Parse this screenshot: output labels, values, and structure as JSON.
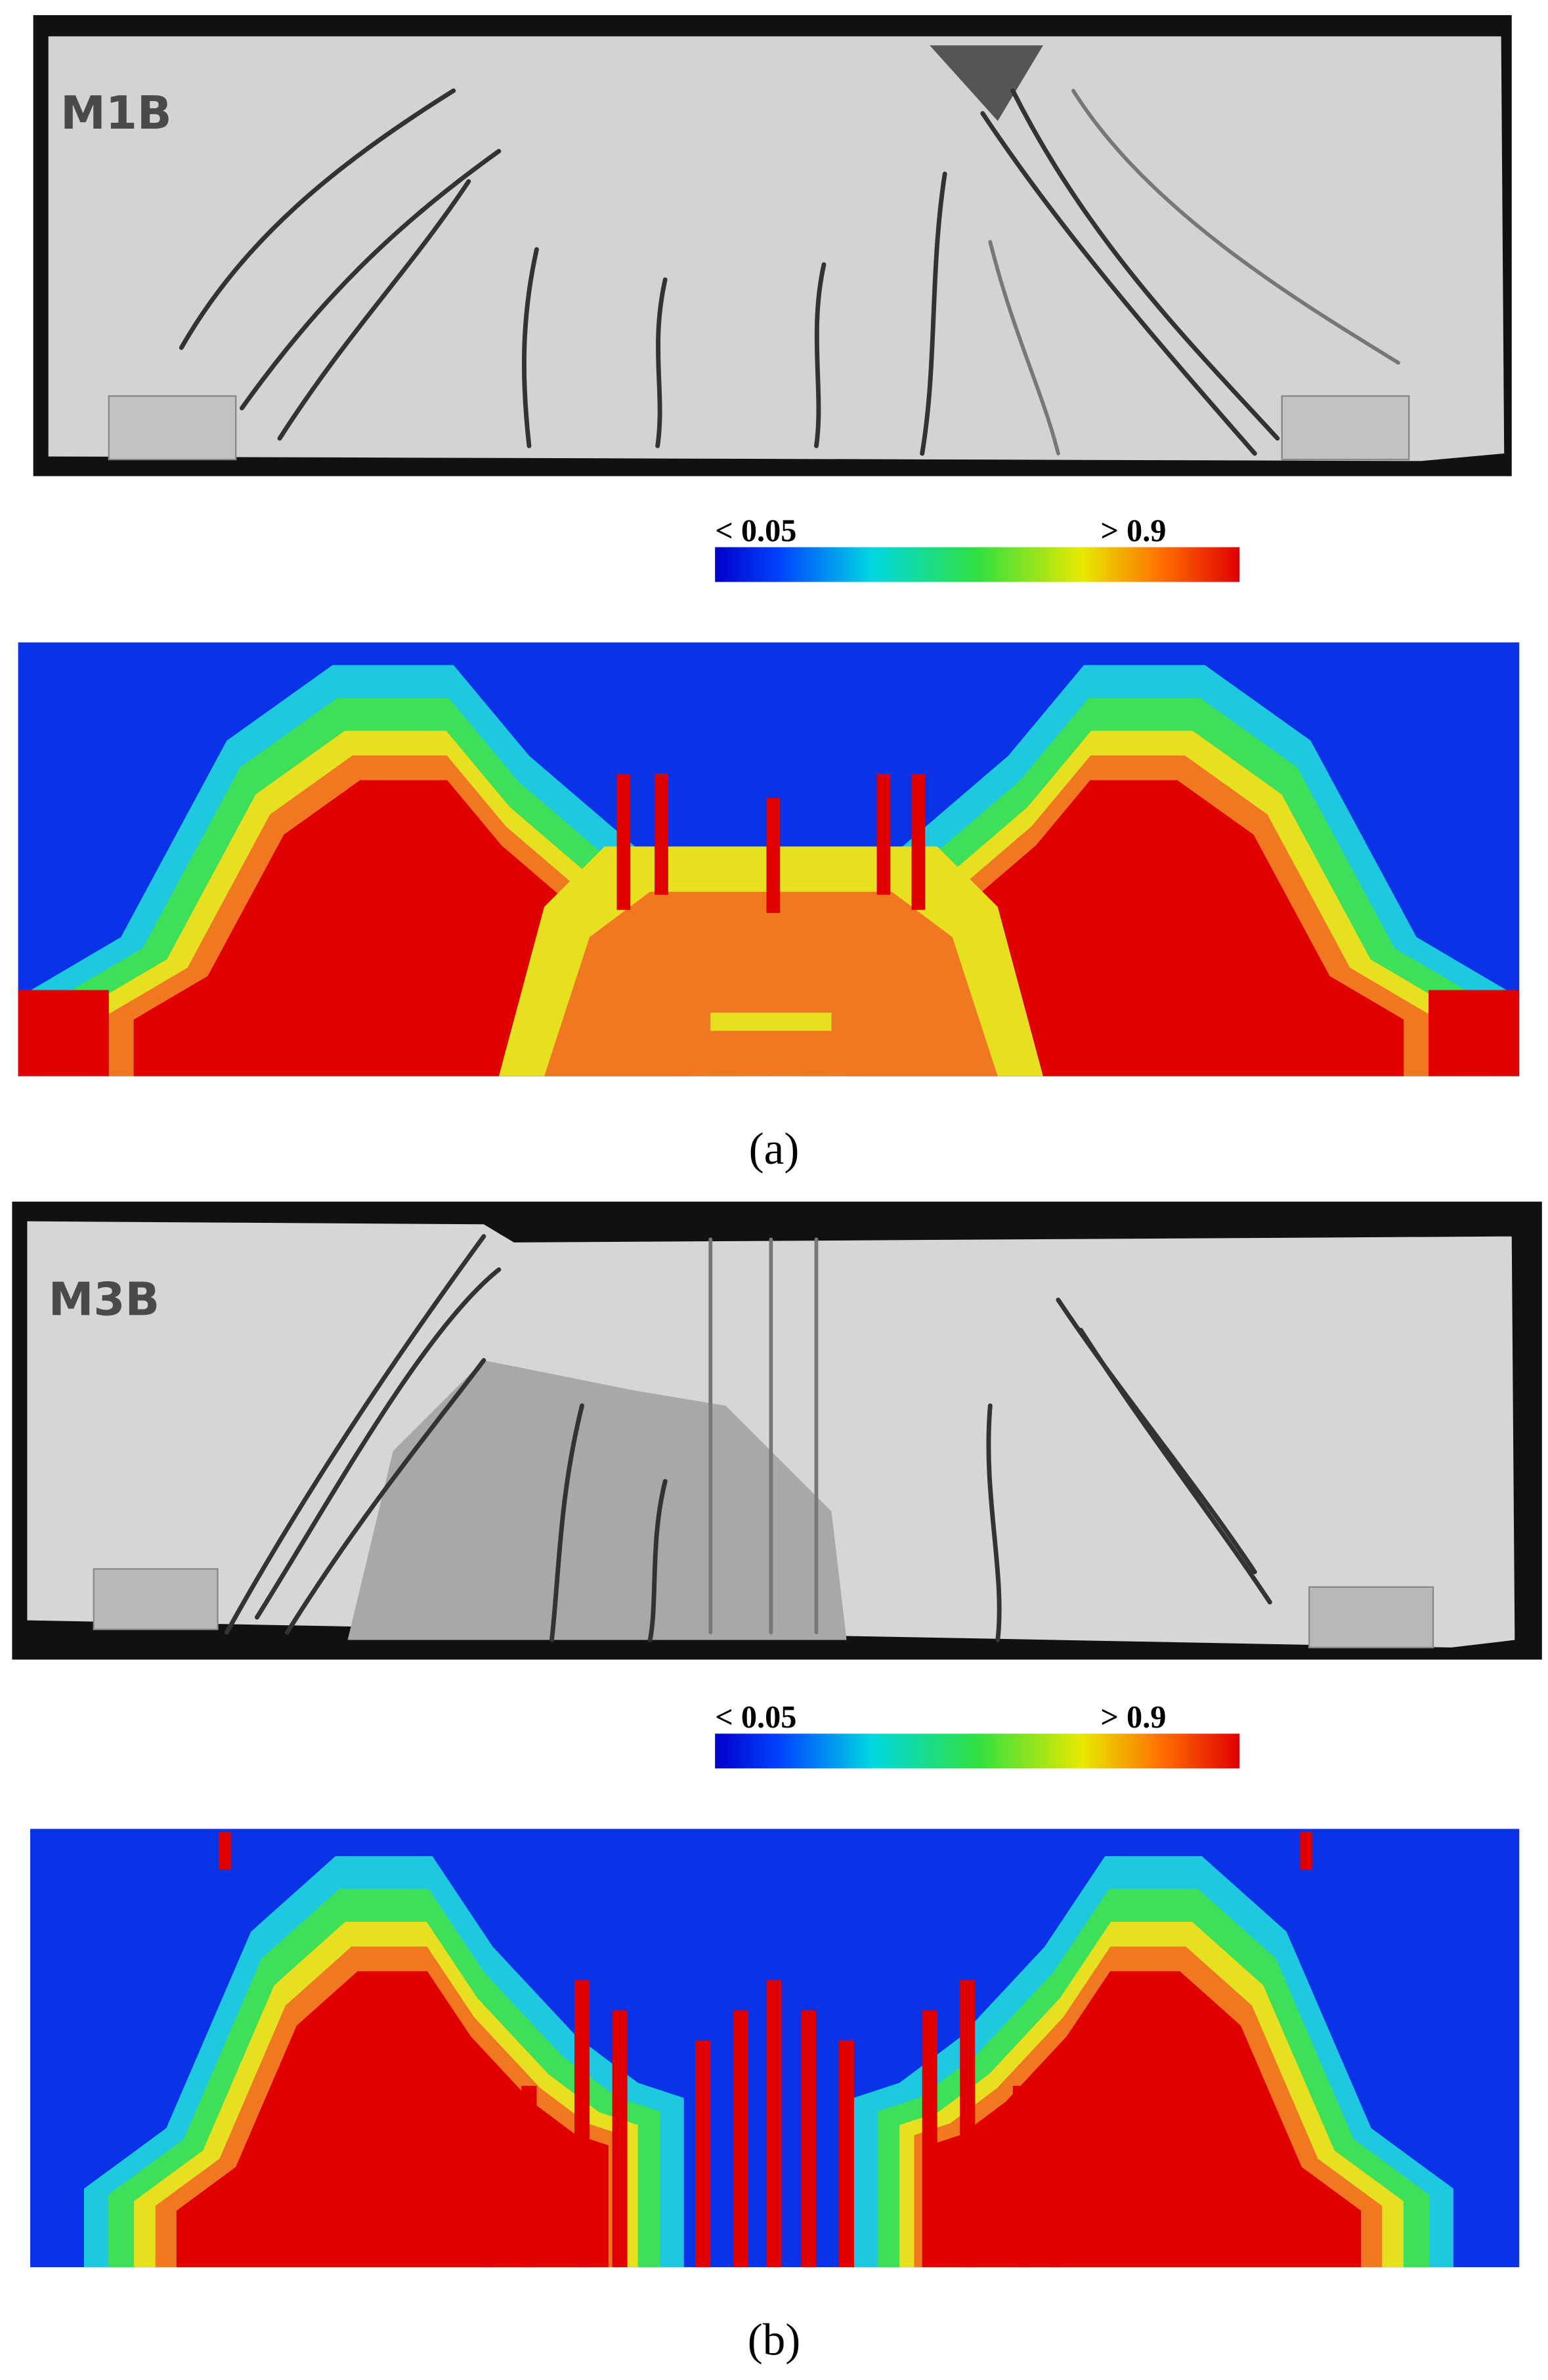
{
  "panels": [
    {
      "label": "(a)",
      "specimen": "M1B",
      "colorbar": {
        "min_label": "< 0.05",
        "max_label": "> 0.9"
      }
    },
    {
      "label": "(b)",
      "specimen": "M3B",
      "colorbar": {
        "min_label": "< 0.05",
        "max_label": "> 0.9"
      }
    }
  ]
}
